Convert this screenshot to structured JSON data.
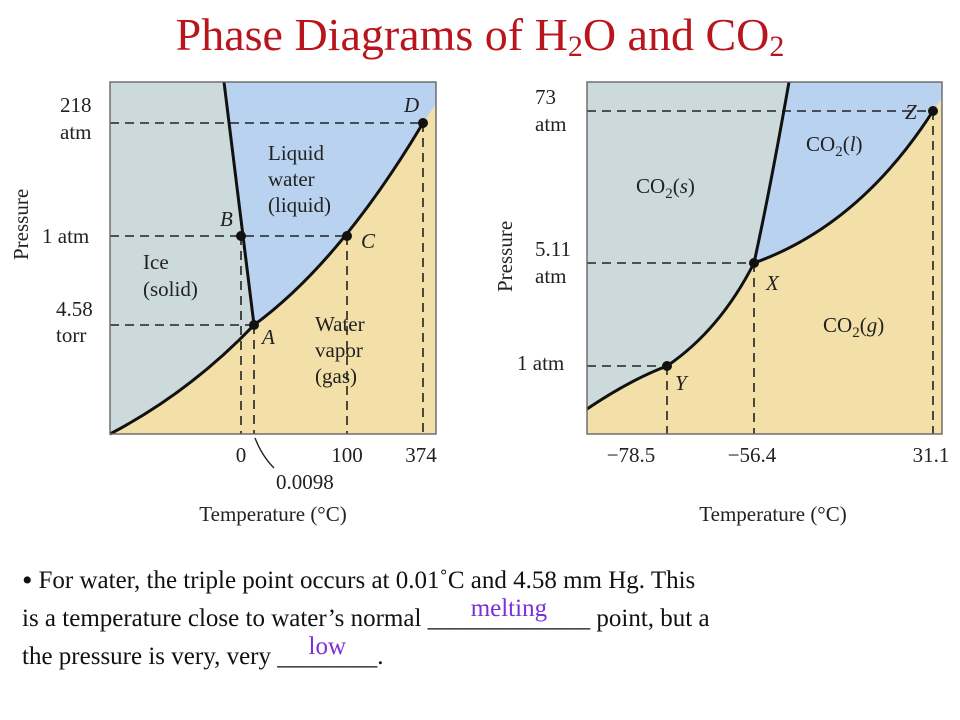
{
  "title": {
    "main": "Phase Diagrams of H",
    "sub1": "2",
    "mid": "O and CO",
    "sub2": "2"
  },
  "colors": {
    "title": "#b8151c",
    "solid_region": "#ccdadb",
    "liquid_region": "#b8d2f0",
    "gas_region": "#f2e0a8",
    "answer": "#7b2fd6"
  },
  "water_diagram": {
    "y_axis_title": "Pressure",
    "x_axis_title": "Temperature (°C)",
    "pressure_labels": [
      "218",
      "atm",
      "1 atm",
      "4.58",
      "torr"
    ],
    "temperature_labels": [
      "0",
      "0.0098",
      "100",
      "374"
    ],
    "points": [
      "D",
      "B",
      "C",
      "A"
    ],
    "regions": {
      "liquid": [
        "Liquid",
        "water",
        "(liquid)"
      ],
      "solid": [
        "Ice",
        "(solid)"
      ],
      "gas": [
        "Water",
        "vapor",
        "(gas)"
      ]
    }
  },
  "co2_diagram": {
    "y_axis_title": "Pressure",
    "x_axis_title": "Temperature (°C)",
    "pressure_labels": [
      "73",
      "atm",
      "5.11",
      "atm",
      "1 atm"
    ],
    "temperature_labels": [
      "−78.5",
      "−56.4",
      "31.1"
    ],
    "points": [
      "Z",
      "X",
      "Y"
    ],
    "regions": {
      "solid": [
        "CO",
        "2",
        "(",
        "s",
        ")"
      ],
      "liquid": [
        "CO",
        "2",
        "(",
        "l",
        ")"
      ],
      "gas": [
        "CO",
        "2",
        "(",
        "g",
        ")"
      ]
    }
  },
  "bullet": {
    "line1": "For water, the triple point occurs at 0.01˚C  and 4.58 mm Hg.  This",
    "line2_start": "is a temperature close to water’s normal ",
    "blank1": "_____________",
    "answer1": "melting",
    "line2_end": " point, but a",
    "line3_start": "the pressure is very, very ",
    "blank2": "________",
    "answer2": "low",
    "line3_end": "."
  }
}
